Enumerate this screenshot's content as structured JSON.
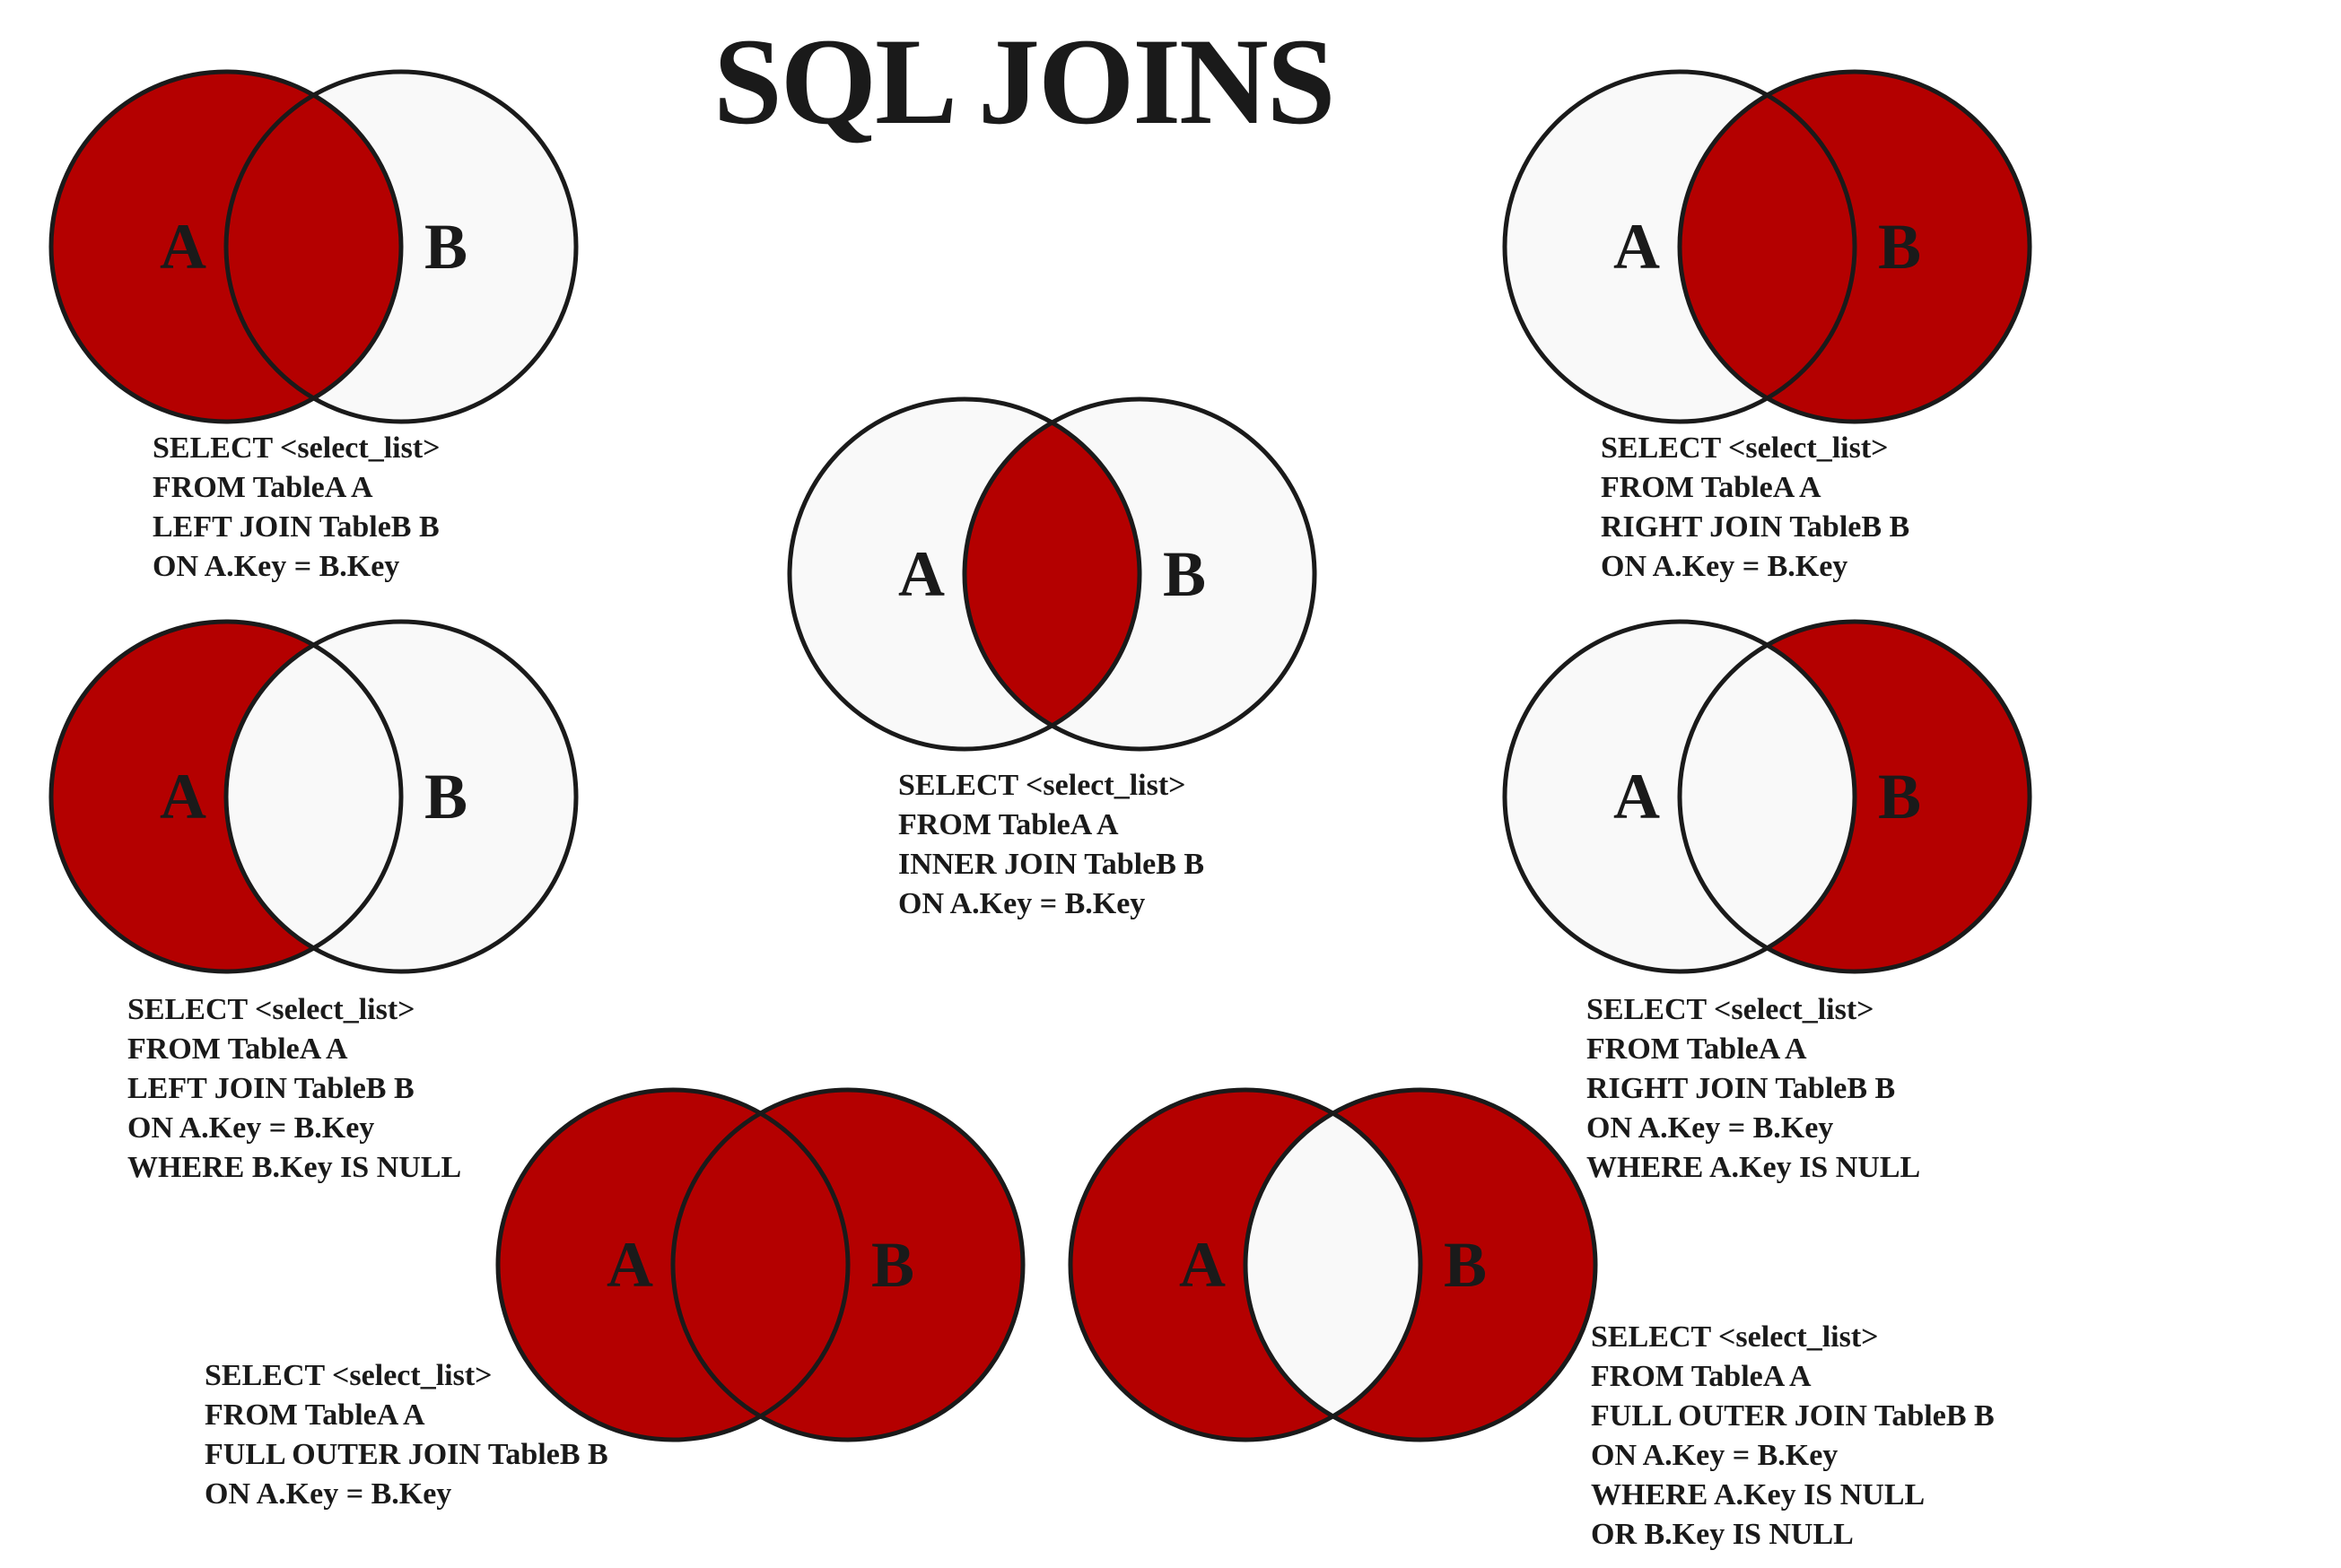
{
  "title": "SQL JOINS",
  "colors": {
    "fill": "#b40000",
    "empty": "#f9f9f9",
    "stroke": "#1a1a1a",
    "background": "#ffffff"
  },
  "diagrams": [
    {
      "id": "left-join",
      "circle_a_label": "A",
      "circle_b_label": "B",
      "highlighted_regions": [
        "a_only",
        "intersection"
      ],
      "query": [
        "SELECT <select_list>",
        "FROM TableA A",
        "LEFT JOIN TableB B",
        "ON A.Key = B.Key"
      ]
    },
    {
      "id": "inner-join",
      "circle_a_label": "A",
      "circle_b_label": "B",
      "highlighted_regions": [
        "intersection"
      ],
      "query": [
        "SELECT <select_list>",
        "FROM TableA A",
        "INNER JOIN TableB B",
        "ON A.Key = B.Key"
      ]
    },
    {
      "id": "right-join",
      "circle_a_label": "A",
      "circle_b_label": "B",
      "highlighted_regions": [
        "b_only",
        "intersection"
      ],
      "query": [
        "SELECT <select_list>",
        "FROM TableA A",
        "RIGHT JOIN TableB B",
        "ON A.Key = B.Key"
      ]
    },
    {
      "id": "left-excluding-join",
      "circle_a_label": "A",
      "circle_b_label": "B",
      "highlighted_regions": [
        "a_only"
      ],
      "query": [
        "SELECT <select_list>",
        "FROM TableA A",
        "LEFT JOIN TableB B",
        "ON A.Key = B.Key",
        "WHERE B.Key IS NULL"
      ]
    },
    {
      "id": "right-excluding-join",
      "circle_a_label": "A",
      "circle_b_label": "B",
      "highlighted_regions": [
        "b_only"
      ],
      "query": [
        "SELECT <select_list>",
        "FROM TableA A",
        "RIGHT JOIN TableB B",
        "ON A.Key = B.Key",
        "WHERE A.Key IS NULL"
      ]
    },
    {
      "id": "full-outer-join",
      "circle_a_label": "A",
      "circle_b_label": "B",
      "highlighted_regions": [
        "a_only",
        "intersection",
        "b_only"
      ],
      "query": [
        "SELECT <select_list>",
        "FROM TableA A",
        "FULL OUTER JOIN TableB B",
        "ON A.Key = B.Key"
      ]
    },
    {
      "id": "full-outer-excluding-join",
      "circle_a_label": "A",
      "circle_b_label": "B",
      "highlighted_regions": [
        "a_only",
        "b_only"
      ],
      "query": [
        "SELECT <select_list>",
        "FROM TableA A",
        "FULL OUTER JOIN TableB B",
        "ON A.Key = B.Key",
        "WHERE A.Key IS NULL",
        "OR B.Key IS NULL"
      ]
    }
  ]
}
